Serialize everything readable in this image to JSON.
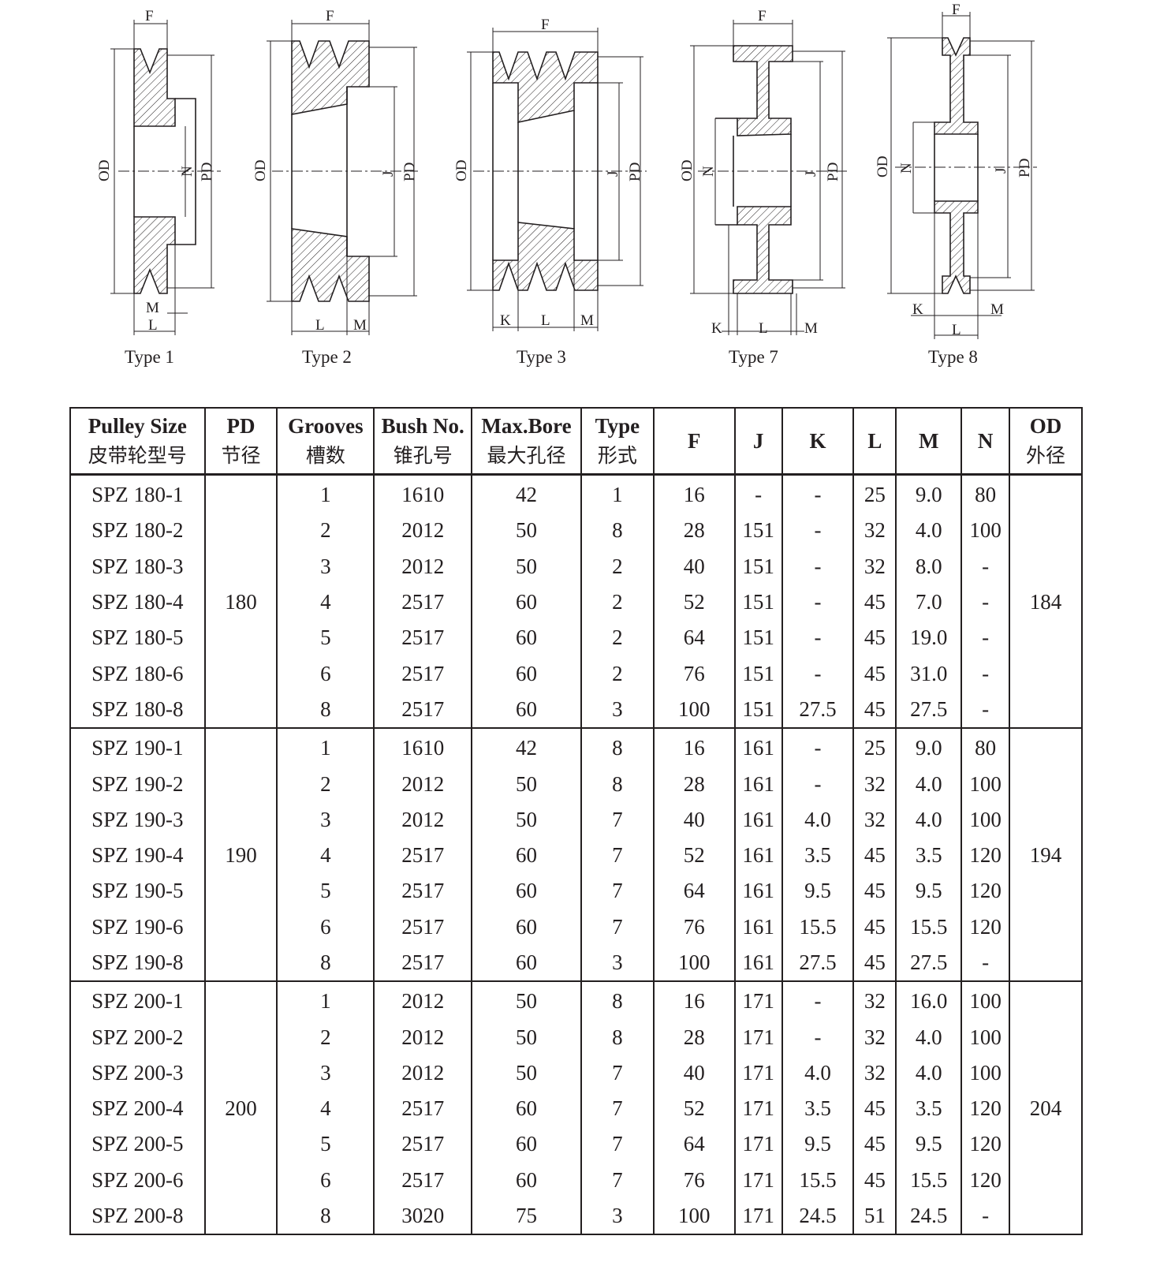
{
  "drawings": [
    {
      "type_label": "Type 1",
      "labels": {
        "F": "F",
        "OD": "OD",
        "N": "N",
        "PD": "PD",
        "M": "M",
        "L": "L"
      }
    },
    {
      "type_label": "Type 2",
      "labels": {
        "F": "F",
        "OD": "OD",
        "J": "J",
        "PD": "PD",
        "L": "L",
        "M": "M"
      }
    },
    {
      "type_label": "Type 3",
      "labels": {
        "F": "F",
        "OD": "OD",
        "J": "J",
        "PD": "PD",
        "K": "K",
        "L": "L",
        "M": "M"
      }
    },
    {
      "type_label": "Type 7",
      "labels": {
        "F": "F",
        "OD": "OD",
        "N": "N",
        "J": "J",
        "PD": "PD",
        "K": "K",
        "L": "L",
        "M": "M"
      }
    },
    {
      "type_label": "Type 8",
      "labels": {
        "F": "F",
        "OD": "OD",
        "N": "N",
        "J": "J",
        "PD": "PD",
        "K": "K",
        "L": "L",
        "M": "M"
      }
    }
  ],
  "table": {
    "headers": [
      {
        "en": "Pulley Size",
        "zh": "皮带轮型号"
      },
      {
        "en": "PD",
        "zh": "节径"
      },
      {
        "en": "Grooves",
        "zh": "槽数"
      },
      {
        "en": "Bush No.",
        "zh": "锥孔号"
      },
      {
        "en": "Max.Bore",
        "zh": "最大孔径"
      },
      {
        "en": "Type",
        "zh": "形式"
      },
      {
        "en": "F",
        "zh": ""
      },
      {
        "en": "J",
        "zh": ""
      },
      {
        "en": "K",
        "zh": ""
      },
      {
        "en": "L",
        "zh": ""
      },
      {
        "en": "M",
        "zh": ""
      },
      {
        "en": "N",
        "zh": ""
      },
      {
        "en": "OD",
        "zh": "外径"
      }
    ],
    "groups": [
      {
        "pd": "180",
        "od": "184",
        "rows": [
          {
            "size": "SPZ 180-1",
            "grooves": "1",
            "bush": "1610",
            "bore": "42",
            "type": "1",
            "F": "16",
            "J": "-",
            "K": "-",
            "L": "25",
            "M": "9.0",
            "N": "80"
          },
          {
            "size": "SPZ 180-2",
            "grooves": "2",
            "bush": "2012",
            "bore": "50",
            "type": "8",
            "F": "28",
            "J": "151",
            "K": "-",
            "L": "32",
            "M": "4.0",
            "N": "100"
          },
          {
            "size": "SPZ 180-3",
            "grooves": "3",
            "bush": "2012",
            "bore": "50",
            "type": "2",
            "F": "40",
            "J": "151",
            "K": "-",
            "L": "32",
            "M": "8.0",
            "N": "-"
          },
          {
            "size": "SPZ 180-4",
            "grooves": "4",
            "bush": "2517",
            "bore": "60",
            "type": "2",
            "F": "52",
            "J": "151",
            "K": "-",
            "L": "45",
            "M": "7.0",
            "N": "-"
          },
          {
            "size": "SPZ 180-5",
            "grooves": "5",
            "bush": "2517",
            "bore": "60",
            "type": "2",
            "F": "64",
            "J": "151",
            "K": "-",
            "L": "45",
            "M": "19.0",
            "N": "-"
          },
          {
            "size": "SPZ 180-6",
            "grooves": "6",
            "bush": "2517",
            "bore": "60",
            "type": "2",
            "F": "76",
            "J": "151",
            "K": "-",
            "L": "45",
            "M": "31.0",
            "N": "-"
          },
          {
            "size": "SPZ 180-8",
            "grooves": "8",
            "bush": "2517",
            "bore": "60",
            "type": "3",
            "F": "100",
            "J": "151",
            "K": "27.5",
            "L": "45",
            "M": "27.5",
            "N": "-"
          }
        ]
      },
      {
        "pd": "190",
        "od": "194",
        "rows": [
          {
            "size": "SPZ 190-1",
            "grooves": "1",
            "bush": "1610",
            "bore": "42",
            "type": "8",
            "F": "16",
            "J": "161",
            "K": "-",
            "L": "25",
            "M": "9.0",
            "N": "80"
          },
          {
            "size": "SPZ 190-2",
            "grooves": "2",
            "bush": "2012",
            "bore": "50",
            "type": "8",
            "F": "28",
            "J": "161",
            "K": "-",
            "L": "32",
            "M": "4.0",
            "N": "100"
          },
          {
            "size": "SPZ 190-3",
            "grooves": "3",
            "bush": "2012",
            "bore": "50",
            "type": "7",
            "F": "40",
            "J": "161",
            "K": "4.0",
            "L": "32",
            "M": "4.0",
            "N": "100"
          },
          {
            "size": "SPZ 190-4",
            "grooves": "4",
            "bush": "2517",
            "bore": "60",
            "type": "7",
            "F": "52",
            "J": "161",
            "K": "3.5",
            "L": "45",
            "M": "3.5",
            "N": "120"
          },
          {
            "size": "SPZ 190-5",
            "grooves": "5",
            "bush": "2517",
            "bore": "60",
            "type": "7",
            "F": "64",
            "J": "161",
            "K": "9.5",
            "L": "45",
            "M": "9.5",
            "N": "120"
          },
          {
            "size": "SPZ 190-6",
            "grooves": "6",
            "bush": "2517",
            "bore": "60",
            "type": "7",
            "F": "76",
            "J": "161",
            "K": "15.5",
            "L": "45",
            "M": "15.5",
            "N": "120"
          },
          {
            "size": "SPZ 190-8",
            "grooves": "8",
            "bush": "2517",
            "bore": "60",
            "type": "3",
            "F": "100",
            "J": "161",
            "K": "27.5",
            "L": "45",
            "M": "27.5",
            "N": "-"
          }
        ]
      },
      {
        "pd": "200",
        "od": "204",
        "rows": [
          {
            "size": "SPZ 200-1",
            "grooves": "1",
            "bush": "2012",
            "bore": "50",
            "type": "8",
            "F": "16",
            "J": "171",
            "K": "-",
            "L": "32",
            "M": "16.0",
            "N": "100"
          },
          {
            "size": "SPZ 200-2",
            "grooves": "2",
            "bush": "2012",
            "bore": "50",
            "type": "8",
            "F": "28",
            "J": "171",
            "K": "-",
            "L": "32",
            "M": "4.0",
            "N": "100"
          },
          {
            "size": "SPZ 200-3",
            "grooves": "3",
            "bush": "2012",
            "bore": "50",
            "type": "7",
            "F": "40",
            "J": "171",
            "K": "4.0",
            "L": "32",
            "M": "4.0",
            "N": "100"
          },
          {
            "size": "SPZ 200-4",
            "grooves": "4",
            "bush": "2517",
            "bore": "60",
            "type": "7",
            "F": "52",
            "J": "171",
            "K": "3.5",
            "L": "45",
            "M": "3.5",
            "N": "120"
          },
          {
            "size": "SPZ 200-5",
            "grooves": "5",
            "bush": "2517",
            "bore": "60",
            "type": "7",
            "F": "64",
            "J": "171",
            "K": "9.5",
            "L": "45",
            "M": "9.5",
            "N": "120"
          },
          {
            "size": "SPZ 200-6",
            "grooves": "6",
            "bush": "2517",
            "bore": "60",
            "type": "7",
            "F": "76",
            "J": "171",
            "K": "15.5",
            "L": "45",
            "M": "15.5",
            "N": "120"
          },
          {
            "size": "SPZ 200-8",
            "grooves": "8",
            "bush": "3020",
            "bore": "75",
            "type": "3",
            "F": "100",
            "J": "171",
            "K": "24.5",
            "L": "51",
            "M": "24.5",
            "N": "-"
          }
        ]
      }
    ]
  }
}
